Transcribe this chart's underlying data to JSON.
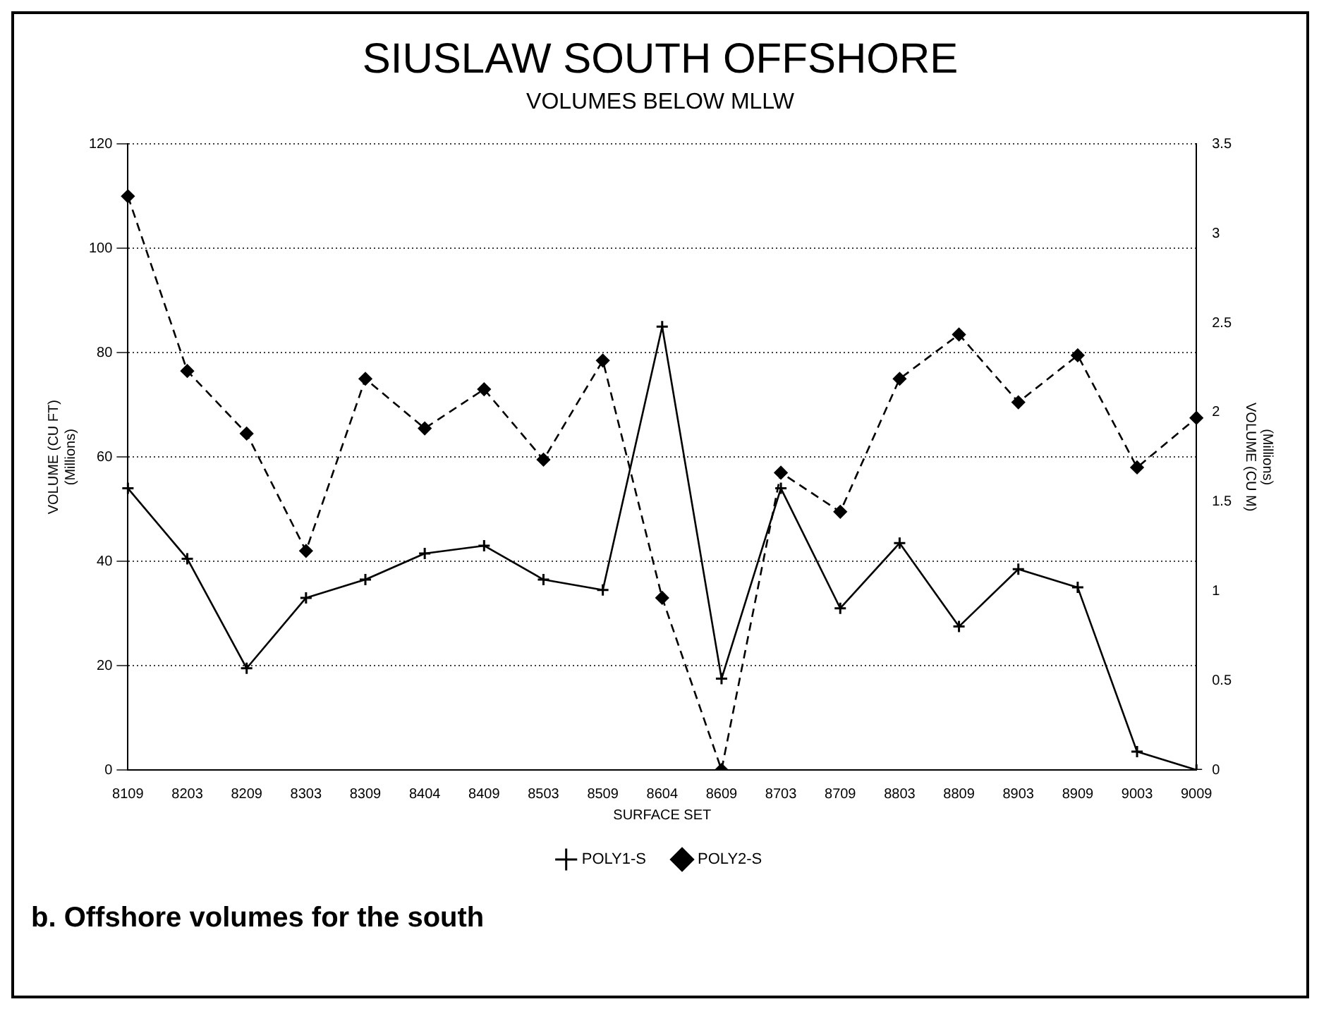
{
  "chart_data": {
    "type": "line",
    "title": "SIUSLAW SOUTH OFFSHORE",
    "subtitle": "VOLUMES BELOW MLLW",
    "xlabel": "SURFACE SET",
    "ylabel": "VOLUME (CU FT)\n(Millions)",
    "y2label": "(Millions)\nVOLUME (CU M)",
    "categories": [
      "8109",
      "8203",
      "8209",
      "8303",
      "8309",
      "8404",
      "8409",
      "8503",
      "8509",
      "8604",
      "8609",
      "8703",
      "8709",
      "8803",
      "8809",
      "8903",
      "8909",
      "9003",
      "9009"
    ],
    "series": [
      {
        "name": "POLY1-S",
        "color": "#000000",
        "marker": "cross",
        "line_style": "solid",
        "values": [
          54,
          40.5,
          19.5,
          33,
          36.5,
          41.5,
          43,
          36.5,
          34.5,
          85,
          17.5,
          54,
          31,
          43.5,
          27.5,
          38.5,
          35,
          3.5,
          0
        ]
      },
      {
        "name": "POLY2-S",
        "color": "#000000",
        "marker": "diamond",
        "line_style": "dashed",
        "values": [
          110,
          76.5,
          64.5,
          42,
          75,
          65.5,
          73,
          59.5,
          78.5,
          33,
          0,
          57,
          49.5,
          75,
          83.5,
          70.5,
          79.5,
          58,
          67.5
        ]
      }
    ],
    "ylim": [
      0,
      120
    ],
    "yticks": [
      0,
      20,
      40,
      60,
      80,
      100,
      120
    ],
    "y2lim": [
      0,
      3.5
    ],
    "y2ticks": [
      0,
      0.5,
      1,
      1.5,
      2,
      2.5,
      3,
      3.5
    ],
    "grid": "y",
    "legend": "bottom",
    "annotations": [
      "b. Offshore volumes for the south"
    ]
  }
}
